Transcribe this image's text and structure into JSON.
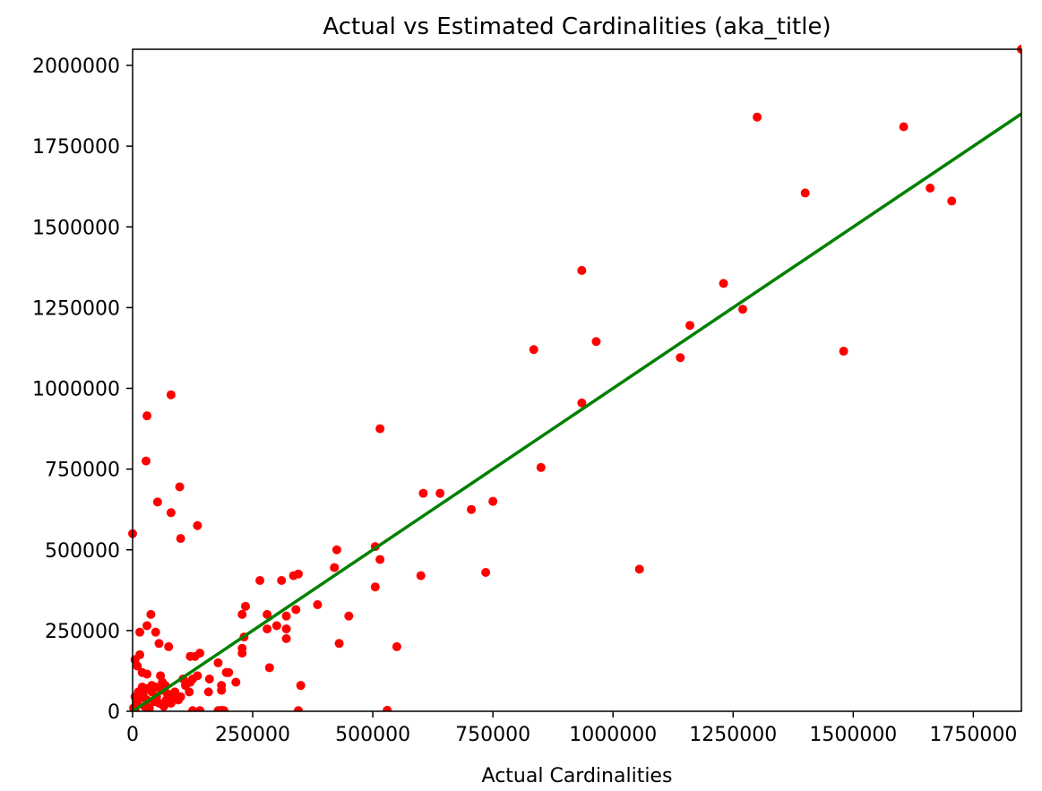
{
  "chart_data": {
    "type": "scatter",
    "title": "Actual vs Estimated Cardinalities (aka_title)",
    "xlabel": "Actual Cardinalities",
    "ylabel": "",
    "xlim": [
      0,
      1850000
    ],
    "ylim": [
      0,
      2050000
    ],
    "xticks": [
      0,
      250000,
      500000,
      750000,
      1000000,
      1250000,
      1500000,
      1750000
    ],
    "yticks": [
      0,
      250000,
      500000,
      750000,
      1000000,
      1250000,
      1500000,
      1750000,
      2000000
    ],
    "xtick_labels": [
      "0",
      "250000",
      "500000",
      "750000",
      "1000000",
      "1250000",
      "1500000",
      "1750000"
    ],
    "ytick_labels": [
      "0",
      "250000",
      "500000",
      "750000",
      "1000000",
      "1250000",
      "1500000",
      "1750000",
      "2000000"
    ],
    "grid": false,
    "colors": {
      "points": "#ff0000",
      "fit_line": "#008000",
      "axes": "#000000"
    },
    "fit_line": {
      "x": [
        0,
        1850000
      ],
      "y": [
        0,
        1850000
      ]
    },
    "points": [
      [
        1850000,
        2050000
      ],
      [
        1300000,
        1840000
      ],
      [
        1605000,
        1810000
      ],
      [
        1660000,
        1620000
      ],
      [
        1705000,
        1580000
      ],
      [
        1400000,
        1605000
      ],
      [
        1230000,
        1325000
      ],
      [
        1160000,
        1195000
      ],
      [
        1270000,
        1245000
      ],
      [
        1140000,
        1095000
      ],
      [
        1480000,
        1115000
      ],
      [
        935000,
        1365000
      ],
      [
        965000,
        1145000
      ],
      [
        835000,
        1120000
      ],
      [
        935000,
        955000
      ],
      [
        1055000,
        440000
      ],
      [
        850000,
        755000
      ],
      [
        705000,
        625000
      ],
      [
        750000,
        650000
      ],
      [
        735000,
        430000
      ],
      [
        605000,
        675000
      ],
      [
        640000,
        675000
      ],
      [
        600000,
        420000
      ],
      [
        515000,
        875000
      ],
      [
        505000,
        510000
      ],
      [
        515000,
        470000
      ],
      [
        505000,
        385000
      ],
      [
        550000,
        200000
      ],
      [
        530000,
        3000
      ],
      [
        425000,
        500000
      ],
      [
        420000,
        445000
      ],
      [
        385000,
        330000
      ],
      [
        450000,
        295000
      ],
      [
        430000,
        210000
      ],
      [
        345000,
        425000
      ],
      [
        335000,
        420000
      ],
      [
        310000,
        405000
      ],
      [
        265000,
        405000
      ],
      [
        340000,
        315000
      ],
      [
        320000,
        295000
      ],
      [
        320000,
        255000
      ],
      [
        320000,
        225000
      ],
      [
        300000,
        265000
      ],
      [
        280000,
        300000
      ],
      [
        280000,
        255000
      ],
      [
        285000,
        135000
      ],
      [
        350000,
        80000
      ],
      [
        345000,
        2000
      ],
      [
        235000,
        325000
      ],
      [
        228000,
        300000
      ],
      [
        232000,
        230000
      ],
      [
        228000,
        195000
      ],
      [
        228000,
        180000
      ],
      [
        215000,
        90000
      ],
      [
        195000,
        120000
      ],
      [
        200000,
        120000
      ],
      [
        178000,
        150000
      ],
      [
        185000,
        80000
      ],
      [
        160000,
        100000
      ],
      [
        158000,
        60000
      ],
      [
        185000,
        65000
      ],
      [
        178000,
        2000
      ],
      [
        185000,
        3000
      ],
      [
        190000,
        2000
      ],
      [
        140000,
        180000
      ],
      [
        130000,
        170000
      ],
      [
        120000,
        170000
      ],
      [
        135000,
        110000
      ],
      [
        125000,
        100000
      ],
      [
        120000,
        90000
      ],
      [
        118000,
        60000
      ],
      [
        110000,
        80000
      ],
      [
        105000,
        100000
      ],
      [
        100000,
        45000
      ],
      [
        95000,
        35000
      ],
      [
        90000,
        50000
      ],
      [
        85000,
        45000
      ],
      [
        80000,
        40000
      ],
      [
        75000,
        200000
      ],
      [
        80000,
        980000
      ],
      [
        80000,
        615000
      ],
      [
        98000,
        695000
      ],
      [
        100000,
        535000
      ],
      [
        135000,
        575000
      ],
      [
        30000,
        915000
      ],
      [
        28000,
        775000
      ],
      [
        52000,
        648000
      ],
      [
        0,
        550000
      ],
      [
        38000,
        300000
      ],
      [
        30000,
        265000
      ],
      [
        48000,
        245000
      ],
      [
        15000,
        245000
      ],
      [
        55000,
        210000
      ],
      [
        15000,
        175000
      ],
      [
        5000,
        160000
      ],
      [
        10000,
        140000
      ],
      [
        20000,
        120000
      ],
      [
        30000,
        115000
      ],
      [
        58000,
        110000
      ],
      [
        40000,
        80000
      ],
      [
        48000,
        75000
      ],
      [
        68000,
        80000
      ],
      [
        20000,
        75000
      ],
      [
        28000,
        70000
      ],
      [
        60000,
        65000
      ],
      [
        72000,
        55000
      ],
      [
        5000,
        45000
      ],
      [
        15000,
        40000
      ],
      [
        30000,
        35000
      ],
      [
        45000,
        30000
      ],
      [
        55000,
        25000
      ],
      [
        10000,
        20000
      ],
      [
        25000,
        15000
      ],
      [
        35000,
        10000
      ],
      [
        5000,
        5000
      ],
      [
        65000,
        15000
      ],
      [
        80000,
        25000
      ],
      [
        50000,
        45000
      ],
      [
        40000,
        60000
      ],
      [
        12000,
        60000
      ],
      [
        2000,
        10000
      ],
      [
        8000,
        30000
      ],
      [
        22000,
        50000
      ],
      [
        70000,
        35000
      ],
      [
        62000,
        90000
      ],
      [
        88000,
        60000
      ],
      [
        125000,
        2000
      ],
      [
        140000,
        2000
      ]
    ]
  }
}
